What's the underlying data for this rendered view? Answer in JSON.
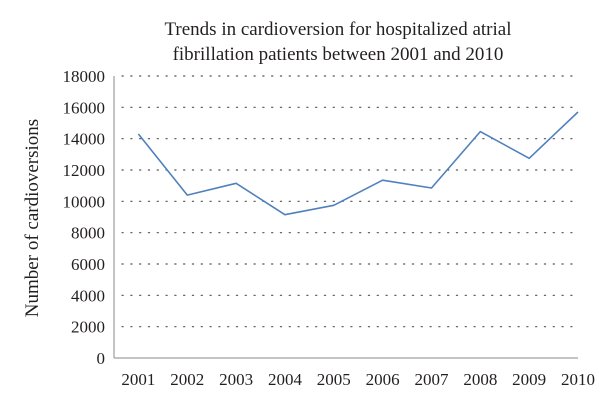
{
  "chart_data": {
    "type": "line",
    "title": [
      "Trends in cardioversion for hospitalized atrial",
      "fibrillation patients between 2001 and 2010"
    ],
    "xlabel": "",
    "ylabel": "Number of cardioversions",
    "categories": [
      "2001",
      "2002",
      "2003",
      "2004",
      "2005",
      "2006",
      "2007",
      "2008",
      "2009",
      "2010"
    ],
    "series": [
      {
        "values": [
          14300,
          10400,
          11150,
          9150,
          9750,
          11350,
          10850,
          14450,
          12750,
          15700
        ],
        "color": "#4f81bd"
      }
    ],
    "ylim": [
      0,
      18000
    ],
    "yticks": [
      "0",
      "2000",
      "4000",
      "6000",
      "8000",
      "10000",
      "12000",
      "14000",
      "16000",
      "18000"
    ],
    "grid": true,
    "legend": "none"
  }
}
